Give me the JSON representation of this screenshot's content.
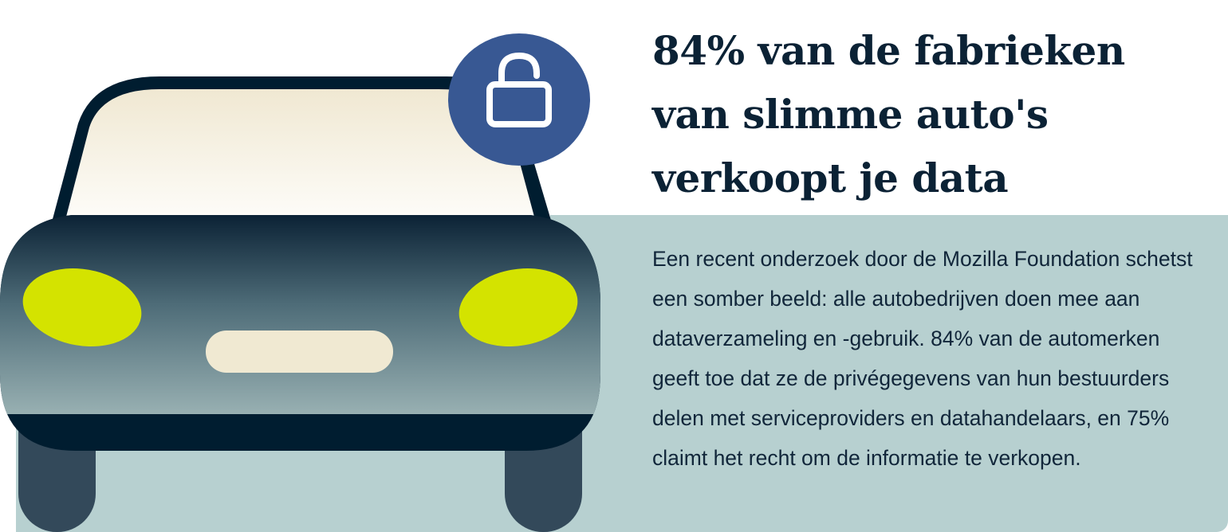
{
  "headline": "84% van de fabrieken van slimme auto's verkoopt je data",
  "body": "Een recent onderzoek door de Mozilla Foundation schetst een somber beeld: alle autobedrijven doen mee aan dataverzameling en -gebruik. 84% van de automerken geeft toe dat ze de privégegevens van hun bestuurders delen met serviceproviders en datahandelaars, en 75% claimt het recht om de informatie te verkopen.",
  "colors": {
    "panel": "#b7d0d0",
    "car_outline": "#001d30",
    "car_body_top": "#0f2a3e",
    "car_body_bottom": "#93abae",
    "headlights": "#d4e300",
    "plate": "#f0e9d2",
    "lock_badge": "#385893",
    "wheels": "#33495a",
    "text": "#0b2235"
  },
  "icons": [
    "car-illustration",
    "unlocked-padlock-icon"
  ]
}
